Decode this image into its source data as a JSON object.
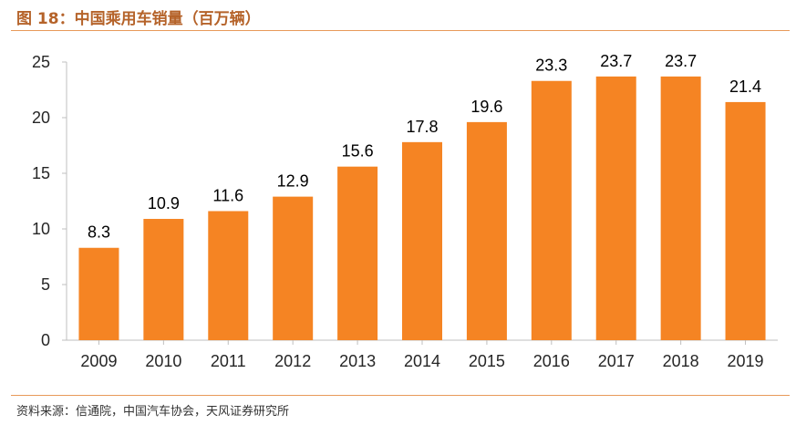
{
  "figure": {
    "title": "图 18：中国乘用车销量（百万辆）",
    "source": "资料来源：信通院，中国汽车协会，天风证券研究所"
  },
  "colors": {
    "bar": "#f58423",
    "axis": "#bfbfbf",
    "title": "#b5632a",
    "rule": "#e89a5a"
  },
  "chart_data": {
    "type": "bar",
    "title": "",
    "xlabel": "",
    "ylabel": "",
    "categories": [
      "2009",
      "2010",
      "2011",
      "2012",
      "2013",
      "2014",
      "2015",
      "2016",
      "2017",
      "2018",
      "2019"
    ],
    "values": [
      8.3,
      10.9,
      11.6,
      12.9,
      15.6,
      17.8,
      19.6,
      23.3,
      23.7,
      23.7,
      21.4
    ],
    "value_labels": [
      "8.3",
      "10.9",
      "11.6",
      "12.9",
      "15.6",
      "17.8",
      "19.6",
      "23.3",
      "23.7",
      "23.7",
      "21.4"
    ],
    "ylim": [
      0,
      25
    ],
    "yticks": [
      "0",
      "5",
      "10",
      "15",
      "20",
      "25"
    ],
    "grid": false,
    "legend": "none"
  }
}
